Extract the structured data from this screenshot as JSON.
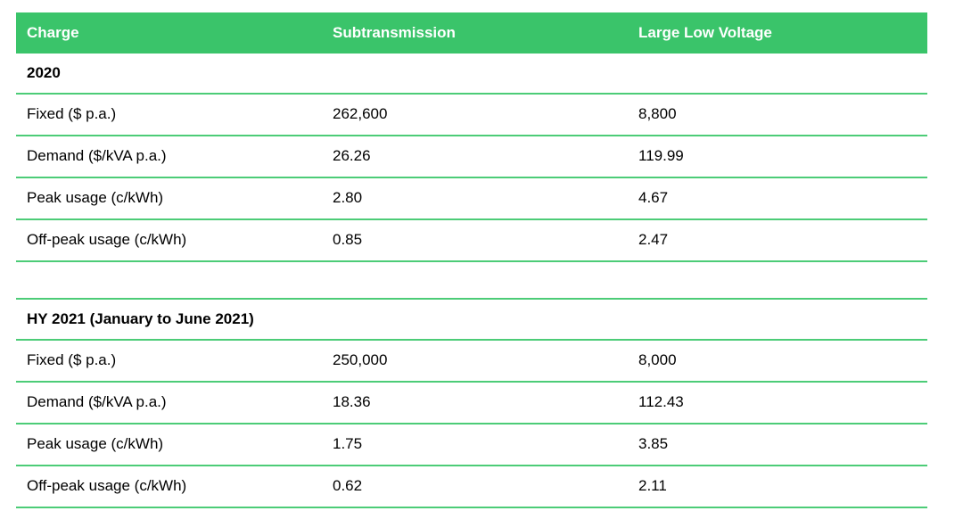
{
  "accent_color": "#3ac46a",
  "rule_color": "#4ccc77",
  "table": {
    "columns": [
      {
        "label": "Charge"
      },
      {
        "label": "Subtransmission"
      },
      {
        "label": "Large Low Voltage"
      }
    ],
    "sections": [
      {
        "title": "2020",
        "rows": [
          {
            "charge": "Fixed ($ p.a.)",
            "subtransmission": "262,600",
            "large_low_voltage": "8,800"
          },
          {
            "charge": "Demand ($/kVA p.a.)",
            "subtransmission": "26.26",
            "large_low_voltage": "119.99"
          },
          {
            "charge": "Peak usage (c/kWh)",
            "subtransmission": "2.80",
            "large_low_voltage": "4.67"
          },
          {
            "charge": "Off-peak usage (c/kWh)",
            "subtransmission": "0.85",
            "large_low_voltage": "2.47"
          }
        ]
      },
      {
        "title": "HY 2021 (January to June 2021)",
        "rows": [
          {
            "charge": "Fixed ($ p.a.)",
            "subtransmission": "250,000",
            "large_low_voltage": "8,000"
          },
          {
            "charge": "Demand ($/kVA p.a.)",
            "subtransmission": "18.36",
            "large_low_voltage": "112.43"
          },
          {
            "charge": "Peak usage (c/kWh)",
            "subtransmission": "1.75",
            "large_low_voltage": "3.85"
          },
          {
            "charge": "Off-peak usage (c/kWh)",
            "subtransmission": "0.62",
            "large_low_voltage": "2.11"
          }
        ]
      }
    ]
  }
}
